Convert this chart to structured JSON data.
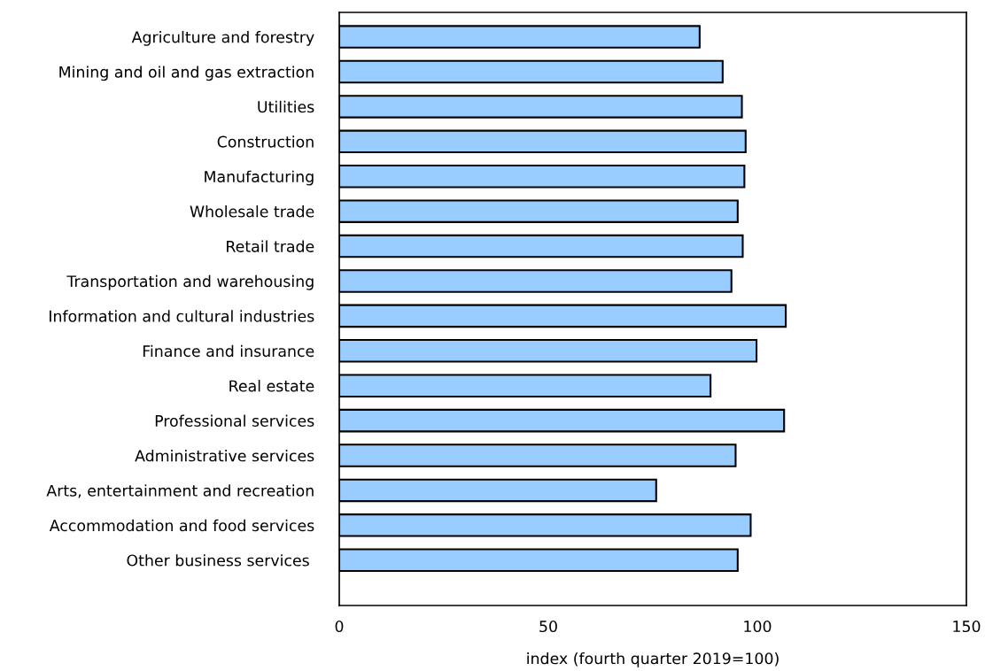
{
  "chart_data": {
    "type": "bar",
    "orientation": "horizontal",
    "xlabel": "index (fourth quarter 2019=100)",
    "categories": [
      "Agriculture and forestry",
      "Mining and oil and gas extraction",
      "Utilities",
      "Construction",
      "Manufacturing",
      "Wholesale trade",
      "Retail trade",
      "Transportation and warehousing",
      "Information and cultural industries",
      "Finance and insurance",
      "Real estate",
      "Professional services",
      "Administrative services",
      "Arts, entertainment and recreation",
      "Accommodation and food services",
      "Other business services "
    ],
    "values": [
      86.2,
      91.7,
      96.3,
      97.2,
      96.9,
      95.3,
      96.5,
      93.8,
      106.8,
      99.8,
      88.8,
      106.4,
      94.8,
      75.8,
      98.4,
      95.3
    ],
    "color": "#99ccff",
    "xlim": [
      0,
      150
    ],
    "xticks": [
      0,
      50,
      100,
      150
    ],
    "grid": false
  }
}
